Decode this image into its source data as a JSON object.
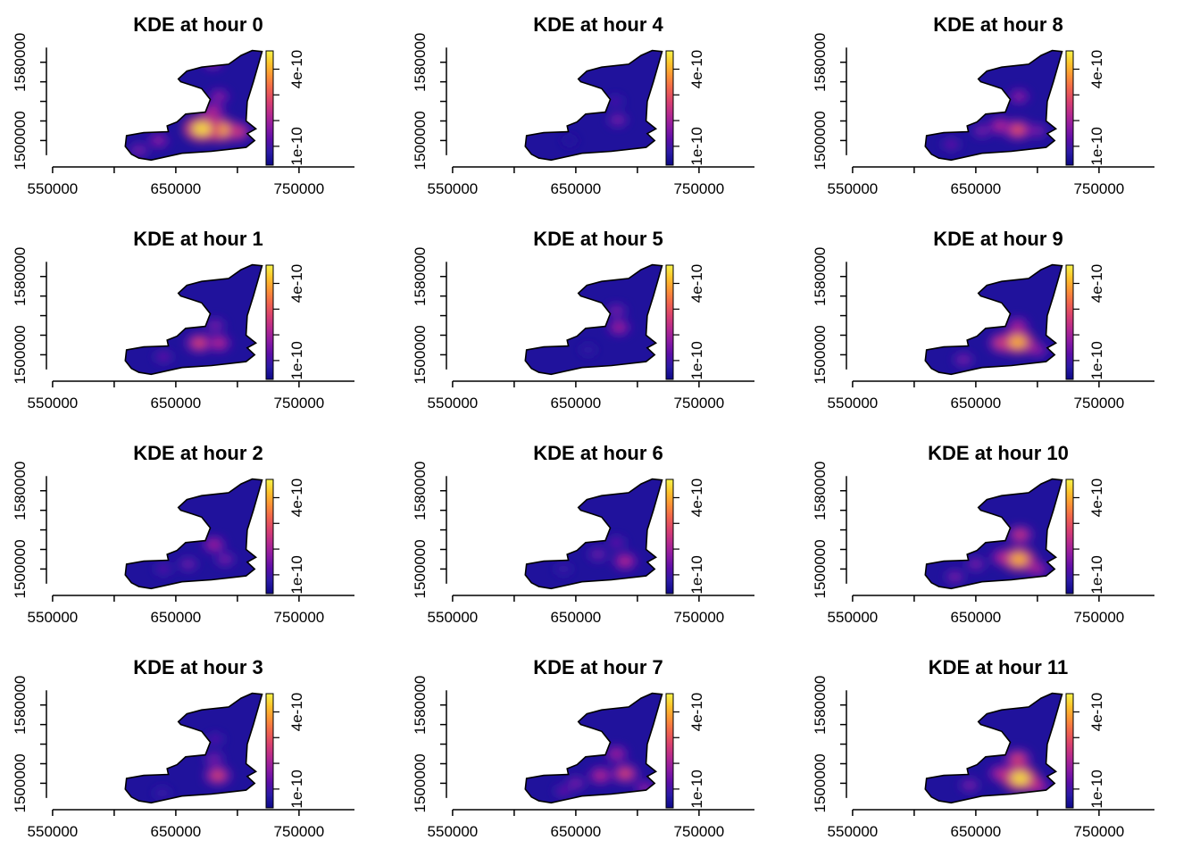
{
  "chart_data": {
    "type": "heatmap",
    "layout": {
      "rows": 4,
      "cols": 3,
      "order": "column-major"
    },
    "shared_axes": {
      "xticks": [
        550000,
        650000,
        750000
      ],
      "xtick_labels": [
        "550000",
        "650000",
        "750000"
      ],
      "yticks": [
        1500000,
        1580000
      ],
      "ytick_labels": [
        "1500000",
        "1580000"
      ],
      "xlim": [
        545000,
        795000
      ],
      "ylim": [
        1473000,
        1598000
      ],
      "xlabel": "",
      "ylabel": ""
    },
    "colorbar": {
      "tick_labels": [
        "1e-10",
        "4e-10"
      ],
      "colors": [
        "#0d0887",
        "#2a1aa6",
        "#5b0ea8",
        "#8a1aa3",
        "#b5298f",
        "#d8406f",
        "#f0634d",
        "#fb9135",
        "#fcc22a",
        "#f6f34a"
      ]
    },
    "panels": [
      {
        "title": "KDE at hour 0",
        "hotspots": [
          [
            671000,
            1512000,
            0.95
          ],
          [
            686000,
            1511000,
            0.85
          ],
          [
            700000,
            1509000,
            0.55
          ],
          [
            680000,
            1530000,
            0.45
          ],
          [
            685000,
            1545000,
            0.35
          ],
          [
            680000,
            1580000,
            0.35
          ],
          [
            636000,
            1500000,
            0.35
          ],
          [
            620000,
            1490000,
            0.3
          ]
        ]
      },
      {
        "title": "KDE at hour 1",
        "hotspots": [
          [
            669000,
            1512000,
            0.55
          ],
          [
            685000,
            1512000,
            0.45
          ],
          [
            682000,
            1530000,
            0.3
          ],
          [
            640000,
            1498000,
            0.25
          ]
        ]
      },
      {
        "title": "KDE at hour 2",
        "hotspots": [
          [
            681000,
            1525000,
            0.4
          ],
          [
            690000,
            1510000,
            0.3
          ],
          [
            660000,
            1505000,
            0.28
          ],
          [
            640000,
            1500000,
            0.22
          ]
        ]
      },
      {
        "title": "KDE at hour 3",
        "hotspots": [
          [
            684000,
            1508000,
            0.55
          ],
          [
            681000,
            1525000,
            0.3
          ],
          [
            682000,
            1545000,
            0.22
          ],
          [
            639000,
            1490000,
            0.18
          ]
        ]
      },
      {
        "title": "KDE at hour 4",
        "hotspots": [
          [
            684000,
            1521000,
            0.3
          ],
          [
            682000,
            1540000,
            0.2
          ],
          [
            645000,
            1500000,
            0.12
          ]
        ]
      },
      {
        "title": "KDE at hour 5",
        "hotspots": [
          [
            685000,
            1528000,
            0.4
          ],
          [
            683000,
            1545000,
            0.3
          ],
          [
            660000,
            1505000,
            0.15
          ]
        ]
      },
      {
        "title": "KDE at hour 6",
        "hotspots": [
          [
            690000,
            1508000,
            0.45
          ],
          [
            668000,
            1515000,
            0.28
          ],
          [
            683000,
            1527000,
            0.25
          ],
          [
            640000,
            1500000,
            0.18
          ]
        ]
      },
      {
        "title": "KDE at hour 7",
        "hotspots": [
          [
            690000,
            1510000,
            0.55
          ],
          [
            670000,
            1508000,
            0.45
          ],
          [
            683000,
            1530000,
            0.4
          ],
          [
            706000,
            1495000,
            0.35
          ],
          [
            650000,
            1500000,
            0.3
          ],
          [
            640000,
            1492000,
            0.25
          ]
        ]
      },
      {
        "title": "KDE at hour 8",
        "hotspots": [
          [
            684000,
            1511000,
            0.6
          ],
          [
            670000,
            1515000,
            0.45
          ],
          [
            685000,
            1545000,
            0.35
          ],
          [
            655000,
            1510000,
            0.3
          ],
          [
            700000,
            1510000,
            0.3
          ],
          [
            630000,
            1496000,
            0.25
          ]
        ]
      },
      {
        "title": "KDE at hour 9",
        "hotspots": [
          [
            684000,
            1513000,
            0.85
          ],
          [
            672000,
            1512000,
            0.6
          ],
          [
            684000,
            1530000,
            0.4
          ],
          [
            700000,
            1505000,
            0.35
          ],
          [
            640000,
            1495000,
            0.3
          ]
        ]
      },
      {
        "title": "KDE at hour 10",
        "hotspots": [
          [
            685000,
            1510000,
            0.85
          ],
          [
            686000,
            1535000,
            0.5
          ],
          [
            672000,
            1512000,
            0.45
          ],
          [
            700000,
            1500000,
            0.4
          ],
          [
            650000,
            1505000,
            0.3
          ],
          [
            633000,
            1492000,
            0.3
          ]
        ]
      },
      {
        "title": "KDE at hour 11",
        "hotspots": [
          [
            686000,
            1505000,
            0.95
          ],
          [
            684000,
            1525000,
            0.55
          ],
          [
            670000,
            1510000,
            0.45
          ],
          [
            700000,
            1497000,
            0.45
          ],
          [
            645000,
            1498000,
            0.3
          ]
        ]
      }
    ]
  }
}
